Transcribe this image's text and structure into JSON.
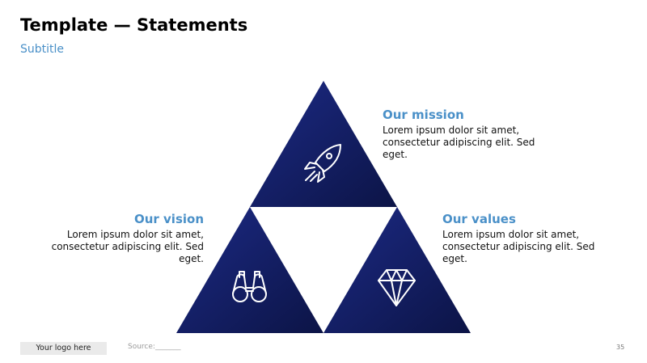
{
  "header": {
    "title": "Template — Statements",
    "subtitle": "Subtitle"
  },
  "statements": {
    "mission": {
      "heading": "Our mission",
      "text": "Lorem ipsum dolor sit amet, consectetur adipiscing elit. Sed eget.",
      "icon": "rocket-icon"
    },
    "vision": {
      "heading": "Our vision",
      "text": "Lorem ipsum dolor sit amet, consectetur adipiscing elit. Sed eget.",
      "icon": "binoculars-icon"
    },
    "values": {
      "heading": "Our values",
      "text": "Lorem ipsum dolor sit amet, consectetur adipiscing elit. Sed eget.",
      "icon": "diamond-icon"
    }
  },
  "colors": {
    "triangle_dark": "#0c1446",
    "triangle_light": "#1c2a85",
    "accent": "#4a90c8"
  },
  "footer": {
    "logo": "Your logo here",
    "source": "Source:_______",
    "page": "35"
  }
}
